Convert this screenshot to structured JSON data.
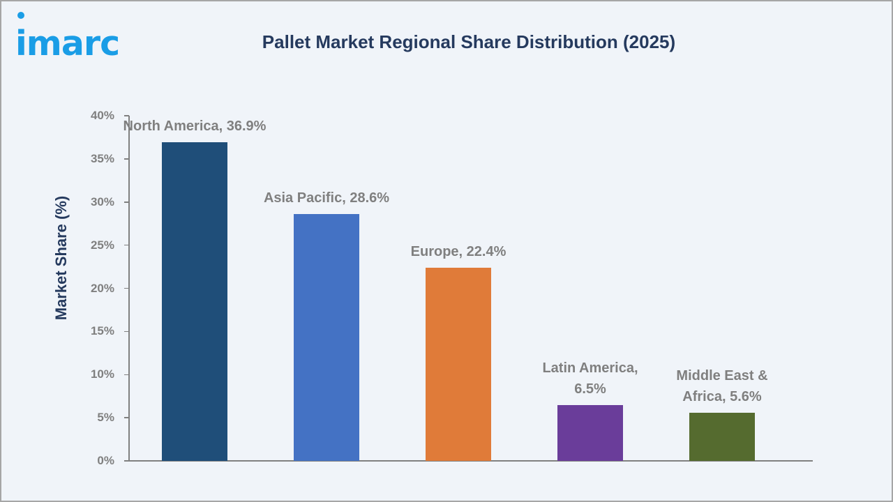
{
  "logo": {
    "text": "imarc",
    "color": "#1a9de6"
  },
  "header": {
    "title": "Pallet Market Regional Share Distribution (2025)"
  },
  "axes": {
    "ylabel": "Market Share (%)",
    "yticks": [
      "0%",
      "5%",
      "10%",
      "15%",
      "20%",
      "25%",
      "30%",
      "35%",
      "40%"
    ]
  },
  "bars": [
    {
      "label": "North America, 36.9%",
      "color": "#1f4e79"
    },
    {
      "label": "Asia Pacific, 28.6%",
      "color": "#4472c4"
    },
    {
      "label": "Europe, 22.4%",
      "color": "#e07b39"
    },
    {
      "label": "Latin America,\n6.5%",
      "color": "#6a3d9a"
    },
    {
      "label": "Middle East &\nAfrica, 5.6%",
      "color": "#556b2f"
    }
  ],
  "chart_data": {
    "type": "bar",
    "title": "Pallet Market Regional Share Distribution (2025)",
    "xlabel": "",
    "ylabel": "Market Share (%)",
    "categories": [
      "North America",
      "Asia Pacific",
      "Europe",
      "Latin America",
      "Middle East & Africa"
    ],
    "values": [
      36.9,
      28.6,
      22.4,
      6.5,
      5.6
    ],
    "colors": [
      "#1f4e79",
      "#4472c4",
      "#e07b39",
      "#6a3d9a",
      "#556b2f"
    ],
    "data_labels": [
      "North America, 36.9%",
      "Asia Pacific, 28.6%",
      "Europe, 22.4%",
      "Latin America, 6.5%",
      "Middle East & Africa, 5.6%"
    ],
    "ylim": [
      0,
      40
    ],
    "yticks": [
      0,
      5,
      10,
      15,
      20,
      25,
      30,
      35,
      40
    ],
    "ytick_format": "percent",
    "grid": false,
    "legend": "none"
  }
}
